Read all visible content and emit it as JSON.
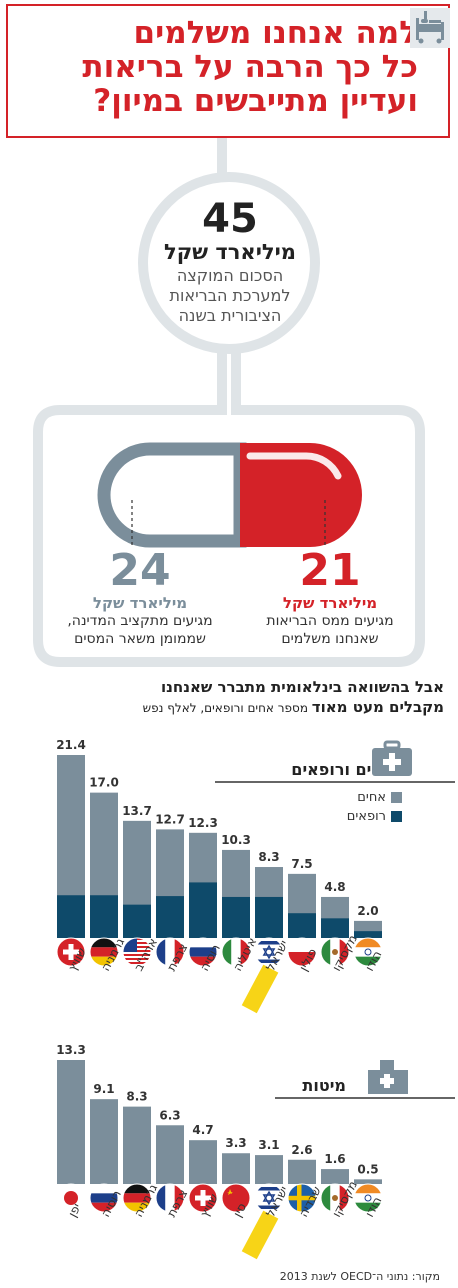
{
  "header": {
    "title_lines": [
      "למה אנחנו משלמים",
      "כל כך הרבה על בריאות",
      "ועדיין מתייבשים במיון?"
    ]
  },
  "budget": {
    "total": "45",
    "total_unit": "מיליארד שקל",
    "total_desc": [
      "הסכום המוקצה",
      "למערכת הבריאות",
      "הציבורית בשנה"
    ],
    "tax_value": "21",
    "tax_unit": "מיליארד שקל",
    "tax_desc": [
      "מגיעים ממס הבריאות",
      "שאנחנו משלמים"
    ],
    "state_value": "24",
    "state_unit": "מיליארד שקל",
    "state_desc": [
      "מגיעים מתקציב המדינה,",
      "שממומן משאר המסים"
    ]
  },
  "comparison": {
    "line1": "אבל בהשוואה בינלאומית מתברר שאנחנו",
    "line2_bold": "מקבלים מעט מאוד",
    "line2_small": " מספר אחים ורופאים, לאלף נפש"
  },
  "colors": {
    "red": "#d42228",
    "gray_bar": "#7b8e9b",
    "doctors": "#0e4a6a",
    "highlight": "#f7d417",
    "icon_gray": "#7b8e9b"
  },
  "chart_data": [
    {
      "type": "bar",
      "title": "אחים ורופאים",
      "categories": [
        "שוויץ",
        "גרמניה",
        "ארה\"ב",
        "צרפת",
        "רוסיה",
        "איטליה",
        "ישראל",
        "פולין",
        "מקסיקו",
        "הודו"
      ],
      "flags": [
        "switzerland",
        "germany",
        "usa",
        "france",
        "russia",
        "italy",
        "israel",
        "poland",
        "mexico",
        "india"
      ],
      "values": [
        21.4,
        17.0,
        13.7,
        12.7,
        12.3,
        10.3,
        8.3,
        7.5,
        4.8,
        2.0
      ],
      "value_labels": [
        "21.4",
        "17.0",
        "13.7",
        "12.7",
        "12.3",
        "10.3",
        "8.3",
        "7.5",
        "4.8",
        "2.0"
      ],
      "doctors_values": [
        5.0,
        5.0,
        3.9,
        4.9,
        6.5,
        4.8,
        4.8,
        2.9,
        2.3,
        0.8
      ],
      "legend": [
        {
          "name": "אחים",
          "color": "#7b8e9b"
        },
        {
          "name": "רופאים",
          "color": "#0e4a6a"
        }
      ],
      "highlight": "ישראל",
      "ylim": [
        0,
        21.4
      ]
    },
    {
      "type": "bar",
      "title": "מיטות",
      "categories": [
        "יפן",
        "רוסיה",
        "גרמניה",
        "צרפת",
        "שוויץ",
        "סין",
        "ישראל",
        "שבדיה",
        "מקסיקו",
        "הודו"
      ],
      "flags": [
        "japan",
        "russia",
        "germany",
        "france",
        "switzerland",
        "china",
        "israel",
        "sweden",
        "mexico",
        "india"
      ],
      "values": [
        13.3,
        9.1,
        8.3,
        6.3,
        4.7,
        3.3,
        3.1,
        2.6,
        1.6,
        0.5
      ],
      "value_labels": [
        "13.3",
        "9.1",
        "8.3",
        "6.3",
        "4.7",
        "3.3",
        "3.1",
        "2.6",
        "1.6",
        "0.5"
      ],
      "highlight": "ישראל",
      "ylim": [
        0,
        13.3
      ]
    }
  ],
  "source": "מקור: נתוני ה־OECD לשנת 2013"
}
